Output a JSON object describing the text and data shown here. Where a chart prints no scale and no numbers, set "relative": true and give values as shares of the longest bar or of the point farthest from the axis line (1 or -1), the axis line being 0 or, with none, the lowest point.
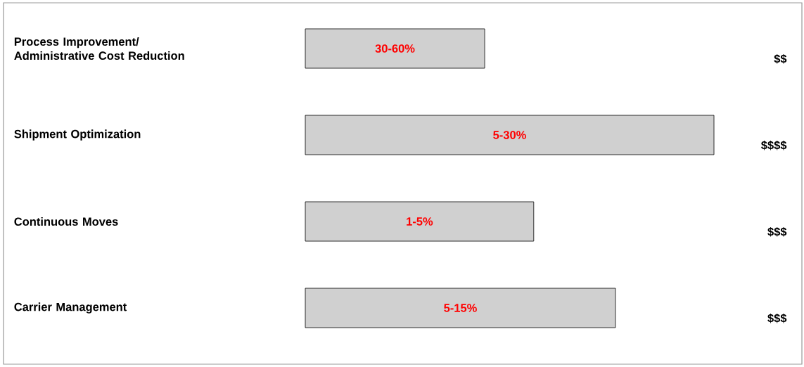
{
  "chart_data": {
    "type": "bar",
    "orientation": "horizontal",
    "relative": true,
    "categories": [
      "Process Improvement/ Administrative Cost Reduction",
      "Shipment Optimization",
      "Continuous Moves",
      "Carrier Management"
    ],
    "values": [
      0.439,
      1,
      0.559,
      0.759
    ],
    "color": "#d0d0d0",
    "annotations": [
      "30-60%",
      "$$",
      "5-30%",
      "$$$$",
      "1-5%",
      "$$$",
      "5-15%",
      "$$$"
    ]
  }
}
